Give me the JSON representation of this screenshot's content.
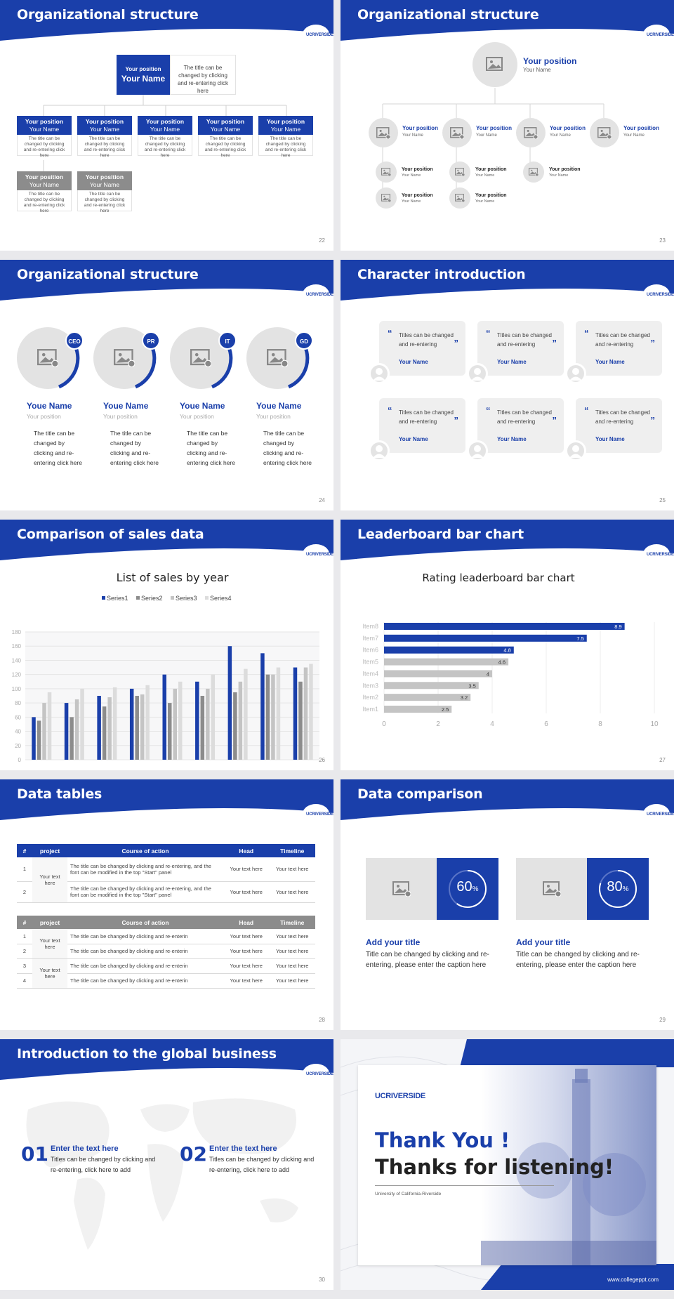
{
  "footer_url": "www.collegeppt.com",
  "colors": {
    "brand": "#1a3faa",
    "gray": "#8c8c8c",
    "light": "#e6e6e6"
  },
  "logo_text": "UCRIVERSIDE",
  "s22": {
    "title": "Organizational structure",
    "top_position": "Your position",
    "top_name": "Your Name",
    "top_desc": "The title can be changed by clicking and re-entering click here",
    "boxes": [
      {
        "pos": "Your position",
        "name": "Your Name",
        "desc": "The title can be changed by clicking and re-entering click here"
      },
      {
        "pos": "Your position",
        "name": "Your Name",
        "desc": "The title can be changed by clicking and re-entering click here"
      },
      {
        "pos": "Your position",
        "name": "Your Name",
        "desc": "The title can be changed by clicking and re-entering click here"
      },
      {
        "pos": "Your position",
        "name": "Your Name",
        "desc": "The title can be changed by clicking and re-entering click here"
      },
      {
        "pos": "Your position",
        "name": "Your Name",
        "desc": "The title can be changed by clicking and re-entering click here"
      },
      {
        "pos": "Your position",
        "name": "Your Name",
        "desc": "The title can be changed by clicking and re-entering click here"
      },
      {
        "pos": "Your position",
        "name": "Your Name",
        "desc": "The title can be changed by clicking and re-entering click here"
      }
    ],
    "page": "22"
  },
  "s23": {
    "title": "Organizational structure",
    "top_position": "Your position",
    "top_name": "Your Name",
    "mid": [
      {
        "pos": "Your position",
        "name": "Your Name"
      },
      {
        "pos": "Your position",
        "name": "Your Name"
      },
      {
        "pos": "Your position",
        "name": "Your Name"
      },
      {
        "pos": "Your position",
        "name": "Your Name"
      }
    ],
    "low": [
      {
        "pos": "Your position",
        "name": "Your Name"
      },
      {
        "pos": "Your position",
        "name": "Your Name"
      },
      {
        "pos": "Your position",
        "name": "Your Name"
      },
      {
        "pos": "Your position",
        "name": "Your Name"
      },
      {
        "pos": "Your position",
        "name": "Your Name"
      }
    ],
    "page": "23"
  },
  "s24": {
    "title": "Organizational structure",
    "people": [
      {
        "badge": "CEO",
        "name": "Youe Name",
        "pos": "Your position",
        "desc": "The title can be changed by clicking and re-entering click here"
      },
      {
        "badge": "PR",
        "name": "Youe Name",
        "pos": "Your position",
        "desc": "The title can be changed by clicking and re-entering click here"
      },
      {
        "badge": "IT",
        "name": "Youe Name",
        "pos": "Your position",
        "desc": "The title can be changed by clicking and re-entering click here"
      },
      {
        "badge": "GD",
        "name": "Youe Name",
        "pos": "Your position",
        "desc": "The title can be changed by clicking and re-entering click here"
      }
    ],
    "page": "24"
  },
  "s25": {
    "title": "Character introduction",
    "cards": [
      {
        "text": "Titles can be changed and re-entering",
        "name": "Your Name"
      },
      {
        "text": "Titles can be changed and re-entering",
        "name": "Your Name"
      },
      {
        "text": "Titles can be changed and re-entering",
        "name": "Your Name"
      },
      {
        "text": "Titles can be changed and re-entering",
        "name": "Your Name"
      },
      {
        "text": "Titles can be changed and re-entering",
        "name": "Your Name"
      },
      {
        "text": "Titles can be changed and re-entering",
        "name": "Your Name"
      }
    ],
    "page": "25"
  },
  "s26": {
    "title": "Comparison of sales data",
    "page": "26"
  },
  "s27": {
    "title": "Leaderboard bar chart",
    "page": "27"
  },
  "chart_data": [
    {
      "type": "bar",
      "title": "List of sales by year",
      "categories": [
        "2010",
        "2012",
        "2014",
        "2016",
        "2018",
        "2020",
        "2022",
        "2024",
        "2026"
      ],
      "series": [
        {
          "name": "Series1",
          "color": "#1a3faa",
          "values": [
            60,
            80,
            90,
            100,
            120,
            110,
            160,
            150,
            130
          ]
        },
        {
          "name": "Series2",
          "color": "#8c8c8c",
          "values": [
            55,
            60,
            75,
            90,
            80,
            90,
            95,
            120,
            110
          ]
        },
        {
          "name": "Series3",
          "color": "#c4c4c4",
          "values": [
            80,
            85,
            88,
            92,
            100,
            100,
            110,
            120,
            130
          ]
        },
        {
          "name": "Series4",
          "color": "#dcdcdc",
          "values": [
            95,
            100,
            102,
            105,
            110,
            120,
            128,
            130,
            135
          ]
        }
      ],
      "ylim": [
        0,
        180
      ],
      "yticks": [
        0,
        20,
        40,
        60,
        80,
        100,
        120,
        140,
        160,
        180
      ],
      "legend": "top",
      "grid": true
    },
    {
      "type": "bar",
      "orientation": "horizontal",
      "title": "Rating leaderboard bar chart",
      "categories": [
        "Item8",
        "Item7",
        "Item6",
        "Item5",
        "Item4",
        "Item3",
        "Item2",
        "Item1"
      ],
      "values": [
        8.9,
        7.5,
        4.8,
        4.6,
        4,
        3.5,
        3.2,
        2.5
      ],
      "colors": [
        "#1a3faa",
        "#1a3faa",
        "#1a3faa",
        "#c4c4c4",
        "#c4c4c4",
        "#c4c4c4",
        "#c4c4c4",
        "#c4c4c4"
      ],
      "xlim": [
        0,
        10
      ],
      "xticks": [
        0,
        2,
        4,
        6,
        8,
        10
      ],
      "grid": true
    }
  ],
  "s28": {
    "title": "Data tables",
    "headers": [
      "#",
      "project",
      "Course of action",
      "Head",
      "Timeline"
    ],
    "t1": {
      "project": "Your text here",
      "rows": [
        {
          "n": "1",
          "action": "The title can be changed by clicking and re-entering, and the font can be modified in the top \"Start\" panel",
          "head": "Your text here",
          "time": "Your text here"
        },
        {
          "n": "2",
          "action": "The title can be changed by clicking and re-entering, and the font can be modified in the top \"Start\" panel",
          "head": "Your text here",
          "time": "Your text here"
        }
      ]
    },
    "t2": {
      "project_a": "Your text here",
      "project_b": "Your text here",
      "rows": [
        {
          "n": "1",
          "action": "The title can be changed by clicking and re-enterin",
          "head": "Your text here",
          "time": "Your text here"
        },
        {
          "n": "2",
          "action": "The title can be changed by clicking and re-enterin",
          "head": "Your text here",
          "time": "Your text here"
        },
        {
          "n": "3",
          "action": "The title can be changed by clicking and re-enterin",
          "head": "Your text here",
          "time": "Your text here"
        },
        {
          "n": "4",
          "action": "The title can be changed by clicking and re-enterin",
          "head": "Your text here",
          "time": "Your text here"
        }
      ]
    },
    "page": "28"
  },
  "s29": {
    "title": "Data comparison",
    "items": [
      {
        "percent": 60,
        "label": "60",
        "unit": "%",
        "heading": "Add your title",
        "desc": "Title can be changed by clicking and re-entering, please enter the caption here"
      },
      {
        "percent": 80,
        "label": "80",
        "unit": "%",
        "heading": "Add your title",
        "desc": "Title can be changed by clicking and re-entering, please enter the caption here"
      }
    ],
    "page": "29"
  },
  "s30": {
    "title": "Introduction to the global business",
    "items": [
      {
        "num": "01",
        "heading": "Enter the text here",
        "desc": "Titles can be changed by clicking and re-entering, click here to add"
      },
      {
        "num": "02",
        "heading": "Enter the text here",
        "desc": "Titles can be changed by clicking and re-entering, click here to add"
      }
    ],
    "page": "30"
  },
  "s31": {
    "line1": "Thank You !",
    "line2": "Thanks for listening!",
    "university": "University of California-Riverside"
  }
}
